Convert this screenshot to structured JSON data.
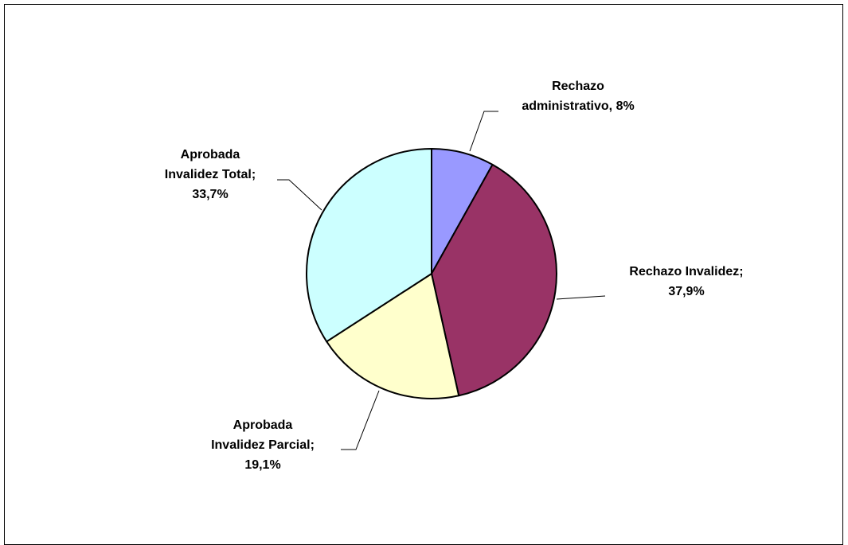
{
  "chart_data": {
    "type": "pie",
    "title": "",
    "slices": [
      {
        "name": "Rechazo administrativo",
        "value": 8.0,
        "label_lines": [
          "Rechazo",
          "administrativo,  8%"
        ],
        "color": "#9999FF"
      },
      {
        "name": "Rechazo Invalidez",
        "value": 37.9,
        "label_lines": [
          "Rechazo Invalidez;",
          "37,9%"
        ],
        "color": "#993366"
      },
      {
        "name": "Aprobada Invalidez Parcial",
        "value": 19.1,
        "label_lines": [
          "Aprobada",
          "Invalidez Parcial;",
          "19,1%"
        ],
        "color": "#FFFFCC"
      },
      {
        "name": "Aprobada Invalidez Total",
        "value": 33.7,
        "label_lines": [
          "Aprobada",
          "Invalidez Total;",
          "33,7%"
        ],
        "color": "#CCFFFF"
      }
    ],
    "legend": "none"
  }
}
